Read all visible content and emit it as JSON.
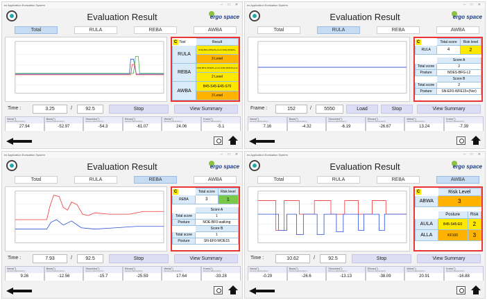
{
  "window_title": "ex Application Evaluation System",
  "page_title": "Evaluation Result",
  "brand": "ergo space",
  "tabs": [
    "Total",
    "RULA",
    "REBA",
    "AWBA"
  ],
  "colors": {
    "tab_active": "#c6dcf2",
    "border_accent": "#e33333",
    "yellow": "#ffe800",
    "orange": "#ffb300",
    "green": "#7ac84a"
  },
  "angle_labels": [
    "Neck(°)",
    "Back(°)",
    "Shoulder(°)",
    "Elbow(°)",
    "Wrist(°)",
    "Knee(°)"
  ],
  "angle_sublabel": "Flexion(+)/Extension(-)",
  "footer": {
    "back_icon": "back-arrow-icon",
    "camera_icon": "camera-icon",
    "home_icon": "home-icon"
  },
  "p1": {
    "active_tab": "Total",
    "control": {
      "label": "Time :",
      "current": "3.25",
      "sep": "/",
      "total": "92.5",
      "btn1": "Stop",
      "btn2": "View Summary"
    },
    "angles": [
      "27.94",
      "-52.97",
      "-54.3",
      "-61.07",
      "24.06",
      "-5.1"
    ],
    "result": {
      "badge": "C",
      "col1": "Tool",
      "col2": "Result",
      "rows": [
        {
          "tool": "RULA",
          "posture": "NOE-BFG-WFE15+(LL2)-NOE-WFE15+",
          "level": "3 Level"
        },
        {
          "tool": "REBA",
          "posture": "NOE-BFG-WFE15+(LL2)-NOE-WFE15+(L2)",
          "level": "2 Level"
        },
        {
          "tool": "AWBA",
          "posture": "B45-S45-E45-S70",
          "level": "3 Level"
        }
      ]
    }
  },
  "p2": {
    "active_tab": "RULA",
    "control": {
      "label": "Frame :",
      "current": "152",
      "sep": "/",
      "total": "5550",
      "btn1": "Load",
      "btn2": "Stop",
      "btn3": "View Summary"
    },
    "angles": [
      "7.16",
      "-4.32",
      "-6.19",
      "-26.67",
      "13.24",
      "-7.39"
    ],
    "result": {
      "badge": "C",
      "h_total": "Total score",
      "h_risk": "Risk level",
      "tool": "RULA",
      "total": "4",
      "risk": "2",
      "score_a": "Score A",
      "a_total_label": "Total score",
      "a_total": "2",
      "a_posture_label": "Posture",
      "a_posture": "NOES-BFG-L2",
      "score_b": "Score B",
      "b_total_label": "Total score",
      "b_total": "2",
      "b_posture_label": "Posture",
      "b_posture": "SN-EF0-WFE15+(Nor)"
    }
  },
  "p3": {
    "active_tab": "REBA",
    "control": {
      "label": "Time :",
      "current": "7.93",
      "sep": "/",
      "total": "92.5",
      "btn1": "Stop",
      "btn2": "View Summary"
    },
    "angles": [
      "9.26",
      "-12.56",
      "-15.7",
      "-25.59",
      "17.64",
      "-33.28"
    ],
    "result": {
      "badge": "C",
      "h_total": "Total score",
      "h_risk": "Risk level",
      "tool": "REBA",
      "total": "3",
      "risk": "1",
      "score_a": "Score A",
      "a_total_label": "Total score",
      "a_total": "1",
      "a_posture_label": "Posture",
      "a_posture": "NOE-BF0-walking",
      "score_b": "Score B",
      "b_total_label": "Total score",
      "b_total": "1",
      "b_posture_label": "Posture",
      "b_posture": "SN-EF0-WOE15"
    }
  },
  "p4": {
    "active_tab": "AWBA",
    "control": {
      "label": "Time :",
      "current": "10.62",
      "sep": "/",
      "total": "92.5",
      "btn1": "Stop",
      "btn2": "View Summary"
    },
    "angles": [
      "-0.29",
      "-26.6",
      "-13.13",
      "-38.09",
      "20.91",
      "-16.88"
    ],
    "result": {
      "badge": "C",
      "h_risk": "Risk Level",
      "abwa_label": "ABWA",
      "abwa_level": "3",
      "h_posture": "Posture",
      "h_risk2": "Risk",
      "rows": [
        {
          "tool": "AULA",
          "posture": "B45-S45-E0",
          "risk": "2"
        },
        {
          "tool": "ALLA",
          "posture": "KF100",
          "risk": "3"
        }
      ]
    }
  }
}
